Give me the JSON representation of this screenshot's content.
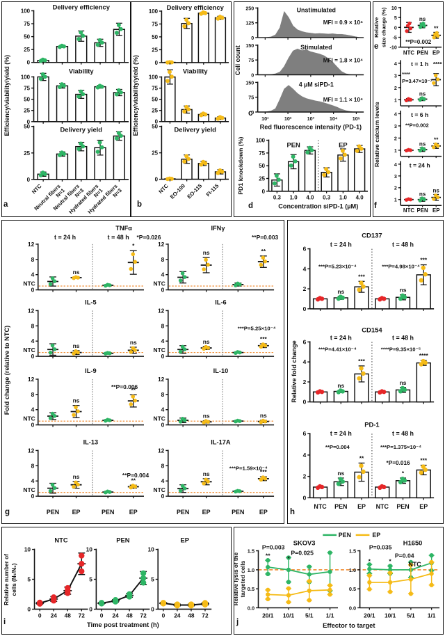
{
  "colors": {
    "green": "#2eb565",
    "yellow": "#f5bb17",
    "red": "#e62628",
    "orange": "#ef8220",
    "hist": "#7f7f7f",
    "ink": "#111111"
  },
  "letters": {
    "a": "a",
    "b": "b",
    "c": "c",
    "d": "d",
    "e": "e",
    "f": "f",
    "g": "g",
    "h": "h",
    "i": "i",
    "j": "j"
  },
  "chart_data": {
    "a": {
      "type": "bar",
      "ylabel": "Efficiency/viability/yield (%)",
      "point_color": "green",
      "categories": [
        [
          "NTC"
        ],
        [
          "Neutral fibers",
          "N=1"
        ],
        [
          "Neutral fibers",
          "N=3"
        ],
        [
          "Hydrated fibers",
          "N=1"
        ],
        [
          "Hydrated fibers",
          "N=3"
        ]
      ],
      "subplots": [
        {
          "title": "Delivery efficiency",
          "ylim": [
            0,
            100
          ],
          "yticks": [
            0,
            25,
            50,
            75,
            100
          ],
          "values": [
            4,
            31,
            51,
            38,
            64
          ],
          "errors": [
            2,
            2,
            10,
            7,
            12
          ]
        },
        {
          "title": "Viability",
          "ylim": [
            0,
            100
          ],
          "yticks": [
            0,
            25,
            50,
            75,
            100
          ],
          "values": [
            100,
            80,
            61,
            78,
            65
          ],
          "errors": [
            8,
            5,
            9,
            3,
            7
          ]
        },
        {
          "title": "Delivery yield",
          "ylim": [
            0,
            50
          ],
          "yticks": [
            0,
            25,
            50
          ],
          "values": [
            5,
            24,
            31,
            30,
            41
          ],
          "errors": [
            2,
            2,
            4,
            7,
            4
          ]
        }
      ]
    },
    "b": {
      "type": "bar",
      "ylabel": "Efficiency/viability/yield (%)",
      "point_color": "yellow",
      "categories": [
        [
          "NTC"
        ],
        [
          "EO-100"
        ],
        [
          "EO-115"
        ],
        [
          "FI-115"
        ]
      ],
      "subplots": [
        {
          "title": "Delivery efficiency",
          "ylim": [
            0,
            100
          ],
          "yticks": [
            0,
            25,
            50,
            75,
            100
          ],
          "values": [
            0.5,
            76,
            96,
            87
          ],
          "errors": [
            0.5,
            10,
            2,
            3
          ]
        },
        {
          "title": "Viability",
          "ylim": [
            0,
            100
          ],
          "yticks": [
            0,
            25,
            50,
            75,
            100
          ],
          "values": [
            100,
            27,
            16,
            8
          ],
          "errors": [
            16,
            8,
            3,
            3
          ]
        },
        {
          "title": "Delivery yield",
          "ylim": [
            0,
            50
          ],
          "yticks": [
            0,
            25,
            50
          ],
          "values": [
            0.4,
            19,
            15,
            7
          ],
          "errors": [
            0.4,
            4,
            2,
            2
          ]
        }
      ]
    },
    "c": {
      "type": "histogram",
      "ylabel": "Cell count",
      "xlabel": "Red fluorescence intensity (PD-1)",
      "xticks": [
        "10¹",
        "10²",
        "10³",
        "10⁴",
        "10⁵"
      ],
      "subplots": [
        {
          "title": "Unstimulated",
          "mfi": "MFI = 0.9 × 10⁴",
          "yticks": [
            0,
            125,
            250
          ],
          "shape": [
            0,
            0,
            0.01,
            0.03,
            0.1,
            0.35,
            0.93,
            0.72,
            0.42,
            0.28,
            0.22,
            0.18,
            0.16,
            0.14,
            0.15,
            0.14,
            0.13,
            0.14,
            0.12,
            0.12,
            0.1,
            0.07,
            0.04,
            0.01,
            0
          ]
        },
        {
          "title": "Stimulated",
          "mfi": "MFI = 1.8 × 10⁴",
          "yticks": [
            0,
            75,
            150
          ],
          "shape": [
            0,
            0,
            0,
            0.01,
            0.04,
            0.1,
            0.3,
            0.6,
            0.85,
            0.92,
            0.86,
            0.89,
            0.82,
            0.78,
            0.74,
            0.68,
            0.58,
            0.45,
            0.28,
            0.12,
            0.04,
            0.01,
            0,
            0,
            0
          ]
        },
        {
          "title": "4 µM siPD-1",
          "mfi": "MFI = 1.1 × 10⁴",
          "yticks": [
            0,
            75,
            150
          ],
          "shape": [
            0,
            0,
            0.01,
            0.04,
            0.12,
            0.45,
            0.82,
            0.95,
            0.82,
            0.66,
            0.55,
            0.48,
            0.44,
            0.4,
            0.37,
            0.33,
            0.28,
            0.23,
            0.17,
            0.1,
            0.05,
            0.02,
            0,
            0,
            0
          ]
        }
      ]
    },
    "d": {
      "type": "bar",
      "ylabel": "PD1 knockdown (%)",
      "xlabel": "Concentration siPD-1 (µM)",
      "group_labels": [
        "PEN",
        "EP"
      ],
      "categories": [
        "0.3",
        "1.0",
        "4.0",
        "0.3",
        "1.0",
        "4.0"
      ],
      "values": [
        22,
        58,
        80,
        37,
        71,
        83
      ],
      "errors": [
        12,
        14,
        7,
        9,
        12,
        7
      ],
      "colors": [
        "green",
        "green",
        "green",
        "yellow",
        "yellow",
        "yellow"
      ],
      "ylim": [
        0,
        100
      ],
      "yticks": [
        0,
        25,
        50,
        75,
        100
      ]
    },
    "e": {
      "type": "scatter",
      "ylabel": [
        "Relative",
        "size change (%)"
      ],
      "ylim": [
        -10,
        10
      ],
      "yticks": [
        10,
        5,
        0,
        -5,
        -10
      ],
      "categories": [
        "NTC",
        "PEN",
        "EP"
      ],
      "values": [
        0,
        1,
        -4
      ],
      "errors": [
        2.5,
        1.2,
        1.5
      ],
      "colors": [
        "red",
        "green",
        "yellow"
      ],
      "sig": [
        "",
        "ns",
        "**"
      ],
      "annotation": "**P=0.002"
    },
    "f": {
      "type": "scatter",
      "ylabel": "Relative calcium levels",
      "categories": [
        "NTC",
        "PEN",
        "EP"
      ],
      "colors": [
        "red",
        "green",
        "yellow"
      ],
      "ylim": [
        0.5,
        4.2
      ],
      "yticks": [
        1,
        2,
        3,
        4
      ],
      "subplots": [
        {
          "title": "t = 1 h",
          "values": [
            1.0,
            1.05,
            2.65
          ],
          "errors": [
            0.1,
            0.12,
            0.5
          ],
          "sig": [
            "",
            "ns",
            "****"
          ],
          "ann_lines": [
            "****",
            "P=3.47×10⁻⁷"
          ]
        },
        {
          "title": "t = 6 h",
          "values": [
            1.0,
            1.05,
            1.35
          ],
          "errors": [
            0.05,
            0.15,
            0.2
          ],
          "sig": [
            "",
            "ns",
            "**"
          ],
          "ann_lines": [
            "**P=0.002"
          ]
        },
        {
          "title": "t = 24 h",
          "values": [
            1.0,
            1.0,
            1.18
          ],
          "errors": [
            0.05,
            0.15,
            0.25
          ],
          "sig": [
            "",
            "ns",
            "ns"
          ],
          "ann_lines": []
        }
      ]
    },
    "g": {
      "type": "scatter",
      "ylabel": "Fold change (relative to NTC)",
      "headers": [
        "t = 24 h",
        "t = 48 h"
      ],
      "x_group_labels": [
        "PEN",
        "EP",
        "PEN",
        "EP"
      ],
      "ntc_label": "NTC",
      "baseline": 1,
      "ylim": [
        0,
        12
      ],
      "yticks": [
        0,
        4,
        8,
        12
      ],
      "subplots": [
        {
          "title": "TNFα",
          "values": [
            2.2,
            3.2,
            1.2,
            7.2
          ],
          "errors": [
            1.2,
            0.2,
            0.2,
            3.1
          ],
          "sig": [
            "",
            "ns",
            "",
            "*"
          ],
          "annotation": "*P=0.026"
        },
        {
          "title": "IFNγ",
          "values": [
            3.3,
            6.5,
            1.4,
            7.4
          ],
          "errors": [
            1.5,
            2.0,
            0.4,
            1.5
          ],
          "sig": [
            "",
            "ns",
            "",
            "**"
          ],
          "annotation": "**P=0.003"
        },
        {
          "title": "IL-5",
          "values": [
            1.8,
            1.0,
            0.8,
            1.6
          ],
          "errors": [
            1.5,
            0.5,
            0.15,
            0.8
          ],
          "sig": [
            "",
            "ns",
            "",
            "ns"
          ],
          "annotation": ""
        },
        {
          "title": "IL-6",
          "values": [
            1.8,
            2.2,
            1.0,
            2.8
          ],
          "errors": [
            1.0,
            0.4,
            0.2,
            0.5
          ],
          "sig": [
            "",
            "ns",
            "",
            "***"
          ],
          "annotation": "***P=5.25×10⁻⁴"
        },
        {
          "title": "IL-9",
          "values": [
            2.3,
            3.5,
            1.2,
            6.3
          ],
          "errors": [
            0.9,
            1.6,
            0.2,
            1.6
          ],
          "sig": [
            "",
            "ns",
            "",
            "**"
          ],
          "annotation": "**P=0.006"
        },
        {
          "title": "IL-10",
          "values": [
            1.2,
            0.8,
            1.0,
            0.9
          ],
          "errors": [
            0.6,
            0.3,
            0.15,
            0.3
          ],
          "sig": [
            "",
            "ns",
            "",
            "ns"
          ],
          "annotation": ""
        },
        {
          "title": "IL-13",
          "values": [
            2.1,
            3.0,
            1.1,
            2.5
          ],
          "errors": [
            1.3,
            0.9,
            0.2,
            0.4
          ],
          "sig": [
            "",
            "ns",
            "",
            "**"
          ],
          "annotation": "**P=0.004"
        },
        {
          "title": "IL-17A",
          "values": [
            2.0,
            3.8,
            1.3,
            4.6
          ],
          "errors": [
            1.0,
            0.8,
            0.15,
            0.5
          ],
          "sig": [
            "",
            "ns",
            "",
            "***"
          ],
          "annotation": "***P=1.59×10⁻⁴"
        }
      ]
    },
    "h": {
      "type": "bar",
      "ylabel": "Relative fold change",
      "headers": [
        "t = 24 h",
        "t = 48 h"
      ],
      "categories": [
        "NTC",
        "PEN",
        "EP",
        "NTC",
        "PEN",
        "EP"
      ],
      "point_colors": [
        "red",
        "green",
        "yellow",
        "red",
        "green",
        "yellow"
      ],
      "ylim": [
        0,
        6
      ],
      "yticks": [
        0,
        2,
        4,
        6
      ],
      "subplots": [
        {
          "title": "CD137",
          "values": [
            1.0,
            1.1,
            2.2,
            1.0,
            1.15,
            3.4
          ],
          "errors": [
            0.1,
            0.15,
            0.55,
            0.1,
            0.25,
            1.0
          ],
          "sig": [
            "",
            "ns",
            "***",
            "",
            "ns",
            "***"
          ],
          "ann24": "***P=5.23×10⁻⁴",
          "ann48": "***P=4.98×10⁻⁴",
          "ann_extra": ""
        },
        {
          "title": "CD154",
          "values": [
            1.0,
            1.05,
            2.8,
            1.0,
            1.2,
            3.9
          ],
          "errors": [
            0.08,
            0.12,
            0.8,
            0.08,
            0.25,
            0.25
          ],
          "sig": [
            "",
            "ns",
            "***",
            "",
            "ns",
            "****"
          ],
          "ann24": "***P=4.41×10⁻⁴",
          "ann48": "****P=9.35×10⁻⁵",
          "ann_extra": ""
        },
        {
          "title": "PD-1",
          "values": [
            1.0,
            1.5,
            2.4,
            1.0,
            1.6,
            2.6
          ],
          "errors": [
            0.1,
            0.35,
            0.85,
            0.1,
            0.25,
            0.45
          ],
          "sig": [
            "",
            "ns",
            "**",
            "",
            "*",
            "***"
          ],
          "ann24": "**P=0.004",
          "ann48": "***P=1.375×10⁻⁴",
          "ann_extra": "*P=0.016"
        }
      ]
    },
    "i": {
      "type": "line",
      "ylabel": [
        "Relative number of",
        "cells (Nₜ/N₀)"
      ],
      "xlabel": "Time post treatment (h)",
      "x": [
        0,
        24,
        48,
        72
      ],
      "ylim": [
        0,
        10
      ],
      "yticks": [
        0,
        5,
        10
      ],
      "subplots": [
        {
          "title": "NTC",
          "color": "red",
          "values": [
            1.0,
            1.7,
            3.1,
            7.6
          ],
          "errors": [
            0.15,
            0.4,
            0.6,
            1.8
          ]
        },
        {
          "title": "PEN",
          "color": "green",
          "values": [
            1.0,
            1.4,
            2.3,
            5.2
          ],
          "errors": [
            0.1,
            0.2,
            0.3,
            1.1
          ]
        },
        {
          "title": "EP",
          "color": "yellow",
          "values": [
            1.0,
            0.7,
            0.7,
            0.9
          ],
          "errors": [
            0.1,
            0.15,
            0.15,
            0.2
          ]
        }
      ]
    },
    "j": {
      "type": "line",
      "ylabel": [
        "Relative lysis of the",
        "targeted cells"
      ],
      "xlabel": "Effector to target",
      "legend": [
        "PEN",
        "EP"
      ],
      "categories": [
        "20/1",
        "10/1",
        "5/1",
        "1/1"
      ],
      "ylim": [
        0,
        1.5
      ],
      "yticks": [
        "0.0",
        "0.5",
        "1.0",
        "1.5"
      ],
      "baseline": 1.0,
      "subplots": [
        {
          "title": "SKOV3",
          "ntc_label": "",
          "pen": {
            "values": [
              1.07,
              1.0,
              0.88,
              0.95
            ],
            "errors": [
              0.18,
              0.32,
              0.2,
              0.5
            ]
          },
          "ep": {
            "values": [
              0.35,
              0.33,
              0.45,
              0.47
            ],
            "errors": [
              0.12,
              0.18,
              0.25,
              0.12
            ]
          },
          "annotations": [
            {
              "text": "P=0.003",
              "sig": "**"
            },
            {
              "text": "P=0.025",
              "sig": "*"
            }
          ]
        },
        {
          "title": "H1650",
          "ntc_label": "NTC",
          "pen": {
            "values": [
              1.02,
              1.0,
              1.0,
              1.18
            ],
            "errors": [
              0.12,
              0.1,
              0.2,
              0.2
            ]
          },
          "ep": {
            "values": [
              0.67,
              0.67,
              0.75,
              0.9
            ],
            "errors": [
              0.18,
              0.25,
              0.38,
              0.3
            ]
          },
          "annotations": [
            {
              "text": "P=0.035",
              "sig": "*"
            },
            {
              "text": "P=0.04",
              "sig": "*"
            }
          ]
        }
      ]
    }
  }
}
